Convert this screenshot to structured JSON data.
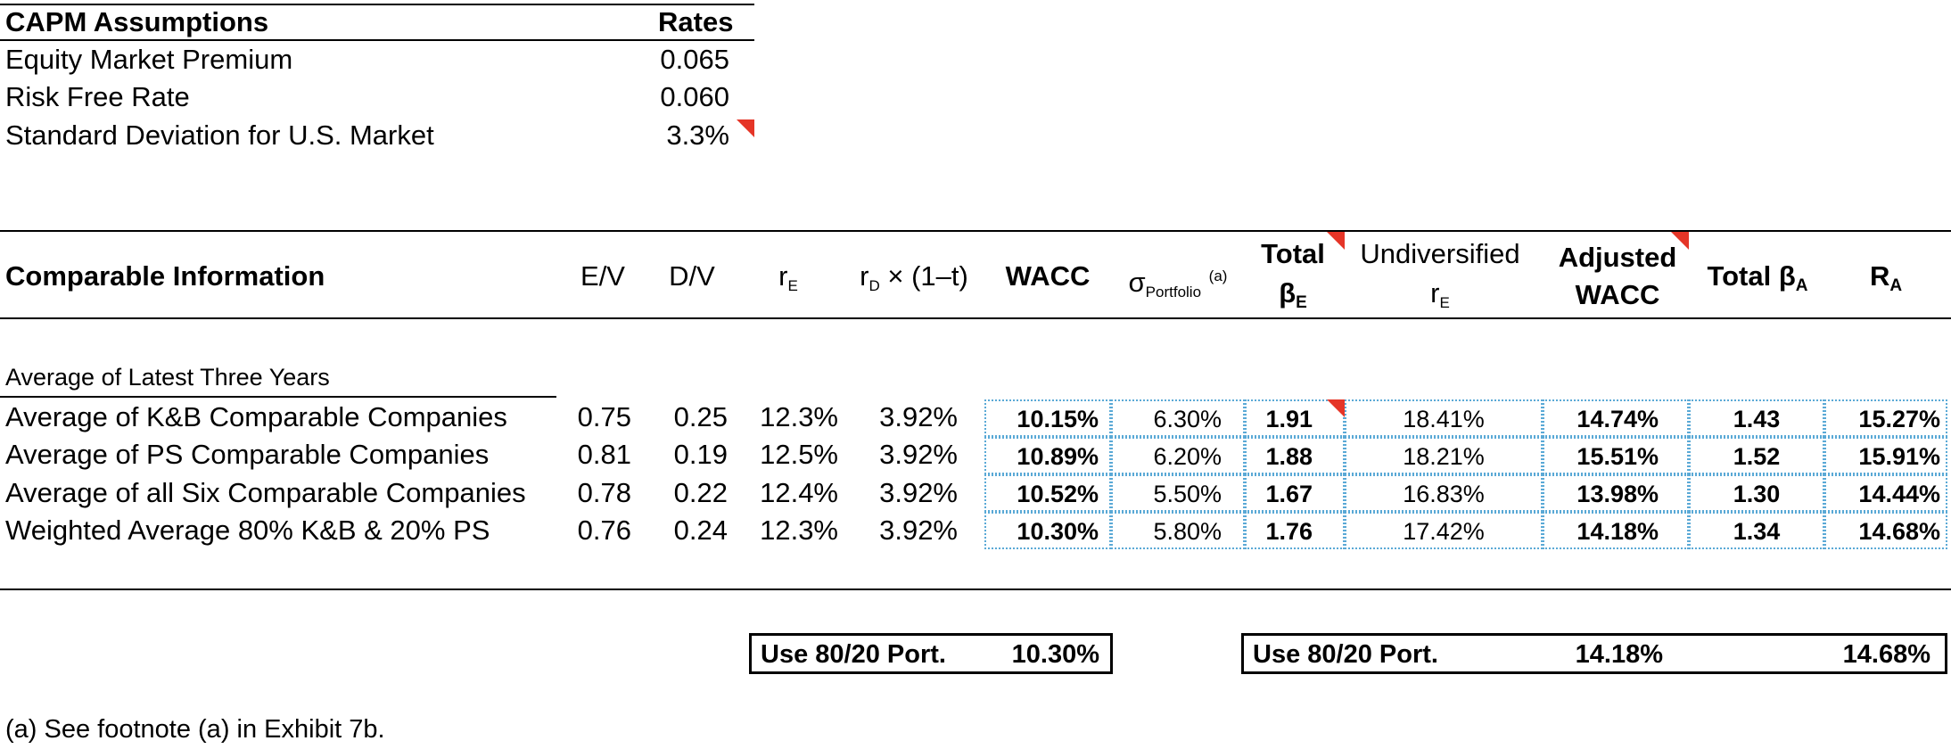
{
  "capm": {
    "title": "CAPM Assumptions",
    "rates_header": "Rates",
    "rows": [
      {
        "label": "Equity Market Premium",
        "value": "0.065"
      },
      {
        "label": "Risk Free Rate",
        "value": "0.060"
      },
      {
        "label": "Standard Deviation for U.S. Market",
        "value": "3.3%"
      }
    ]
  },
  "comparable": {
    "title": "Comparable Information",
    "headers": {
      "ev": "E/V",
      "dv": "D/V",
      "re_main": "r",
      "re_sub": "E",
      "rd_main": "r",
      "rd_sub": "D",
      "rd_tail": " × (1–t)",
      "wacc": "WACC",
      "sigma_main": "σ",
      "sigma_sub": "Portfolio",
      "sigma_sup": "(a)",
      "total_beta_line1": "Total",
      "total_beta_line2_main": "β",
      "total_beta_line2_sub": "E",
      "undiv_line1": "Undiversified",
      "undiv_line2_main": "r",
      "undiv_line2_sub": "E",
      "adj_line1": "Adjusted",
      "adj_line2": "WACC",
      "total_ba_main": "Total β",
      "total_ba_sub": "A",
      "ra_main": "R",
      "ra_sub": "A"
    },
    "section_label": "Average of Latest Three Years",
    "rows": [
      {
        "label": "Average of K&B Comparable Companies",
        "ev": "0.75",
        "dv": "0.25",
        "re": "12.3%",
        "rd": "3.92%",
        "wacc": "10.15%",
        "sigma": "6.30%",
        "beta_e": "1.91",
        "undiv_re": "18.41%",
        "adj_wacc": "14.74%",
        "beta_a": "1.43",
        "ra": "15.27%"
      },
      {
        "label": "Average of PS Comparable Companies",
        "ev": "0.81",
        "dv": "0.19",
        "re": "12.5%",
        "rd": "3.92%",
        "wacc": "10.89%",
        "sigma": "6.20%",
        "beta_e": "1.88",
        "undiv_re": "18.21%",
        "adj_wacc": "15.51%",
        "beta_a": "1.52",
        "ra": "15.91%"
      },
      {
        "label": "Average of all Six Comparable Companies",
        "ev": "0.78",
        "dv": "0.22",
        "re": "12.4%",
        "rd": "3.92%",
        "wacc": "10.52%",
        "sigma": "5.50%",
        "beta_e": "1.67",
        "undiv_re": "16.83%",
        "adj_wacc": "13.98%",
        "beta_a": "1.30",
        "ra": "14.44%"
      },
      {
        "label": "Weighted Average 80% K&B & 20% PS",
        "ev": "0.76",
        "dv": "0.24",
        "re": "12.3%",
        "rd": "3.92%",
        "wacc": "10.30%",
        "sigma": "5.80%",
        "beta_e": "1.76",
        "undiv_re": "17.42%",
        "adj_wacc": "14.18%",
        "beta_a": "1.34",
        "ra": "14.68%"
      }
    ],
    "use_box_1": {
      "label": "Use 80/20 Port.",
      "value": "10.30%"
    },
    "use_box_2": {
      "label": "Use 80/20 Port.",
      "adj_value": "14.18%",
      "ra_value": "14.68%"
    }
  },
  "footnote": "(a) See footnote (a) in Exhibit 7b.",
  "colors": {
    "comment_marker": "#e53527",
    "cell_border": "#5aa9d6"
  }
}
